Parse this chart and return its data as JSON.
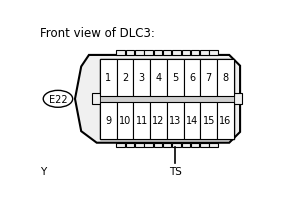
{
  "title": "Front view of DLC3:",
  "title_fontsize": 8.5,
  "connector_label": "E22",
  "bottom_label": "TS",
  "bottom_label2": "Y",
  "top_row": [
    "1",
    "2",
    "3",
    "4",
    "5",
    "6",
    "7",
    "8"
  ],
  "bottom_row": [
    "9",
    "10",
    "11",
    "12",
    "13",
    "14",
    "15",
    "16"
  ],
  "bg_color": "#ffffff",
  "connector_fill": "#f0f0f0",
  "connector_edge": "#000000",
  "pin_fill": "#ffffff",
  "pin_edge": "#000000",
  "text_color": "#000000",
  "font_size": 7.0,
  "label_font_size": 7.5
}
